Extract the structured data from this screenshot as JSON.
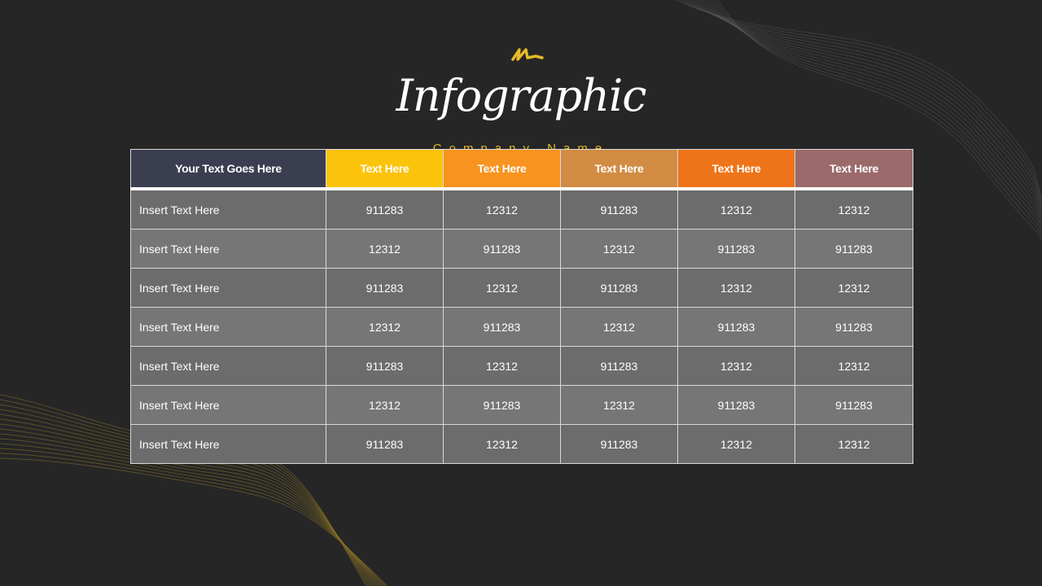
{
  "title": "Infographic",
  "subtitle": "Company Name",
  "colors": {
    "background": "#262626",
    "header_first": "#3b3d50",
    "headers": [
      "#fcc30b",
      "#f7931e",
      "#d18b43",
      "#ee7419",
      "#9b6a6a"
    ],
    "accent": "#e7b92a"
  },
  "table": {
    "headers": [
      "Your Text Goes Here",
      "Text Here",
      "Text Here",
      "Text Here",
      "Text Here",
      "Text Here"
    ],
    "rows": [
      [
        "Insert Text Here",
        "911283",
        "12312",
        "911283",
        "12312",
        "12312"
      ],
      [
        "Insert Text Here",
        "12312",
        "911283",
        "12312",
        "911283",
        "911283"
      ],
      [
        "Insert Text Here",
        "911283",
        "12312",
        "911283",
        "12312",
        "12312"
      ],
      [
        "Insert Text Here",
        "12312",
        "911283",
        "12312",
        "911283",
        "911283"
      ],
      [
        "Insert Text Here",
        "911283",
        "12312",
        "911283",
        "12312",
        "12312"
      ],
      [
        "Insert Text Here",
        "12312",
        "911283",
        "12312",
        "911283",
        "911283"
      ],
      [
        "Insert Text Here",
        "911283",
        "12312",
        "911283",
        "12312",
        "12312"
      ]
    ]
  }
}
